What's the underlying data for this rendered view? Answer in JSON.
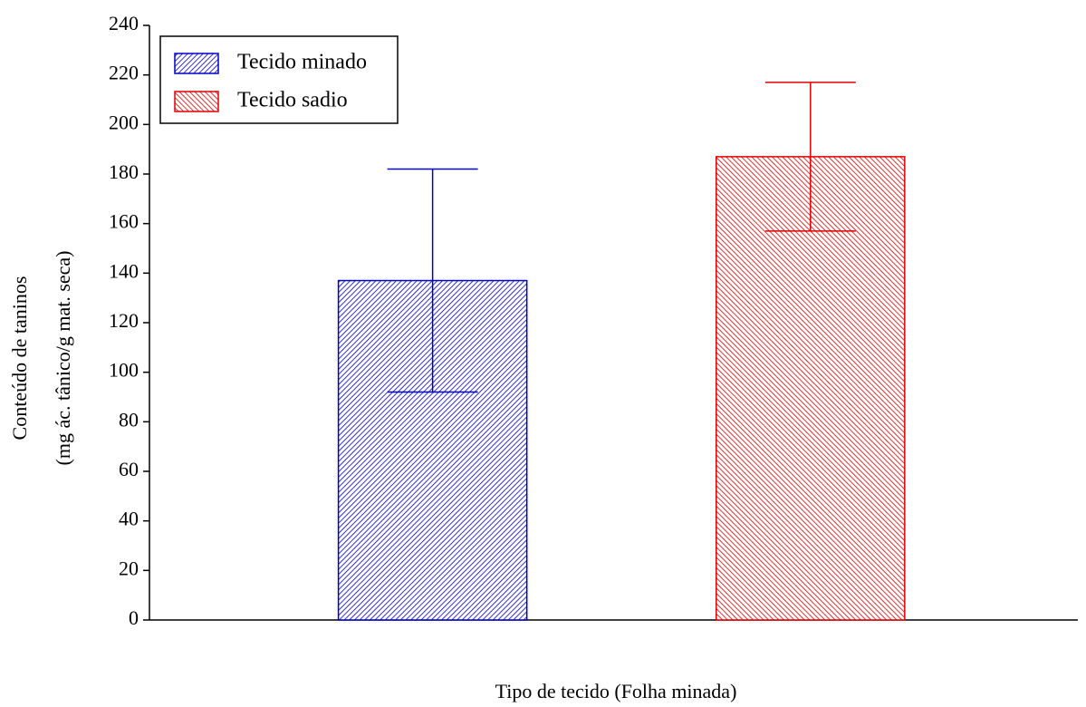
{
  "chart_data": {
    "type": "bar",
    "x_label": "Tipo de tecido (Folha minada)",
    "y_label": [
      "Conteúdo de taninos",
      "(mg ác. tânico/g mat. seca)"
    ],
    "series": [
      {
        "name": "Tecido minado",
        "color": "#0000cc",
        "hatch": "/",
        "values": [
          137
        ],
        "errors": [
          45
        ]
      },
      {
        "name": "Tecido sadio",
        "color": "#e00000",
        "hatch": "\\",
        "values": [
          187
        ],
        "errors": [
          30
        ]
      }
    ],
    "ylim": [
      0,
      240
    ],
    "yticks": [
      0,
      20,
      40,
      60,
      80,
      100,
      120,
      140,
      160,
      180,
      200,
      220,
      240
    ],
    "legend": "upper left",
    "grid": false
  }
}
